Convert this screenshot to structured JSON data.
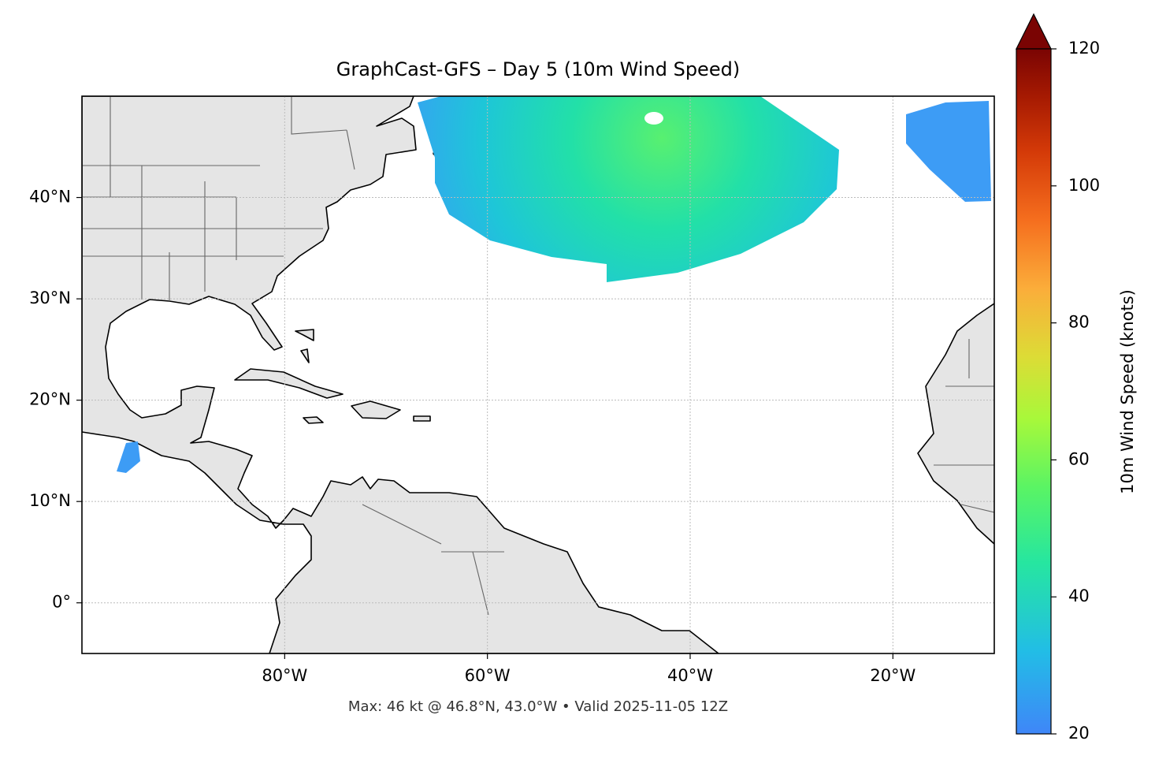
{
  "chart_data": {
    "type": "map",
    "title": "GraphCast-GFS – Day 5 (10m Wind Speed)",
    "note": "Max: 46 kt @ 46.8°N, 43.0°W • Valid 2025-11-05 12Z",
    "xlim": [
      -100,
      -10
    ],
    "ylim": [
      -5,
      50
    ],
    "xticks": [
      {
        "value": -80,
        "label": "80°W"
      },
      {
        "value": -60,
        "label": "60°W"
      },
      {
        "value": -40,
        "label": "40°W"
      },
      {
        "value": -20,
        "label": "20°W"
      }
    ],
    "yticks": [
      {
        "value": 0,
        "label": "0°"
      },
      {
        "value": 10,
        "label": "10°N"
      },
      {
        "value": 20,
        "label": "20°N"
      },
      {
        "value": 30,
        "label": "30°N"
      },
      {
        "value": 40,
        "label": "40°N"
      }
    ],
    "grid": true,
    "colorbar": {
      "label": "10m Wind Speed (knots)",
      "lim": [
        20,
        120
      ],
      "ticks": [
        20,
        40,
        60,
        80,
        100,
        120
      ]
    }
  }
}
